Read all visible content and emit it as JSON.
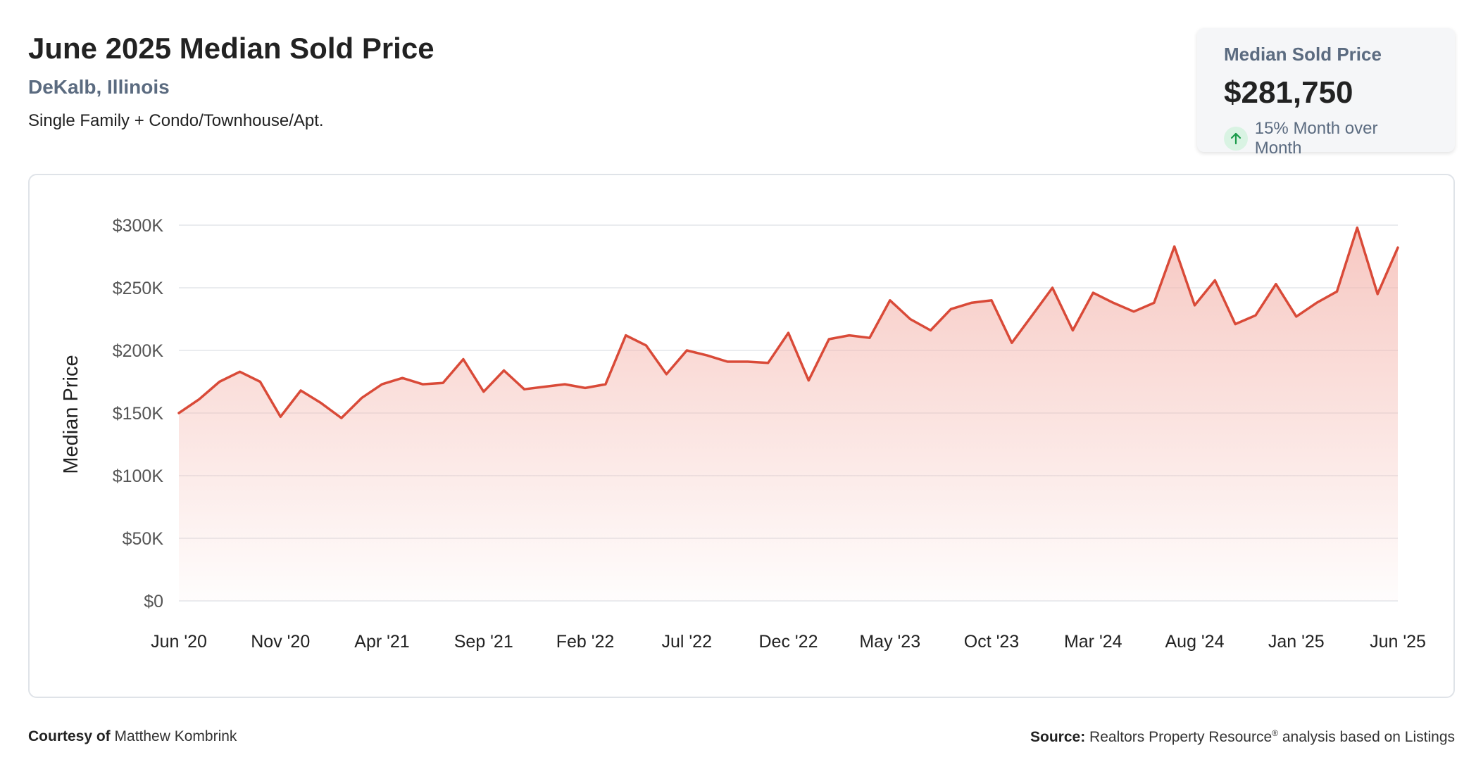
{
  "header": {
    "title": "June 2025 Median Sold Price",
    "subtitle": "DeKalb, Illinois",
    "description": "Single Family + Condo/Townhouse/Apt."
  },
  "kpi": {
    "label": "Median Sold Price",
    "value": "$281,750",
    "change": "15% Month over Month",
    "change_icon": "arrow-up-icon",
    "change_color": "#1a9a4a"
  },
  "footer": {
    "courtesy_label": "Courtesy of",
    "courtesy_name": "Matthew Kombrink",
    "source_label": "Source:",
    "source_text": "Realtors Property Resource",
    "source_mark": "®",
    "source_suffix": "analysis based on Listings"
  },
  "chart_data": {
    "type": "area",
    "ylabel": "Median Price",
    "ylim": [
      0,
      300000
    ],
    "yticks": [
      0,
      50000,
      100000,
      150000,
      200000,
      250000,
      300000
    ],
    "ytick_labels": [
      "$0",
      "$50K",
      "$100K",
      "$150K",
      "$200K",
      "$250K",
      "$300K"
    ],
    "x_tick_labels": [
      "Jun '20",
      "Nov '20",
      "Apr '21",
      "Sep '21",
      "Feb '22",
      "Jul '22",
      "Dec '22",
      "May '23",
      "Oct '23",
      "Mar '24",
      "Aug '24",
      "Jan '25",
      "Jun '25"
    ],
    "x_tick_step_months": 5,
    "grid": true,
    "line_color": "#d94a38",
    "fill_color": "#f4b6ae",
    "series": [
      {
        "values": [
          150000,
          161000,
          175000,
          183000,
          175000,
          147000,
          168000,
          158000,
          146000,
          162000,
          173000,
          178000,
          173000,
          174000,
          193000,
          167000,
          184000,
          169000,
          171000,
          173000,
          170000,
          173000,
          212000,
          204000,
          181000,
          200000,
          196000,
          191000,
          191000,
          190000,
          214000,
          176000,
          209000,
          212000,
          210000,
          240000,
          225000,
          216000,
          233000,
          238000,
          240000,
          206000,
          228000,
          250000,
          216000,
          246000,
          238000,
          231000,
          238000,
          283000,
          236000,
          256000,
          221000,
          228000,
          253000,
          227000,
          238000,
          247000,
          298000,
          245000,
          282000
        ]
      }
    ]
  }
}
